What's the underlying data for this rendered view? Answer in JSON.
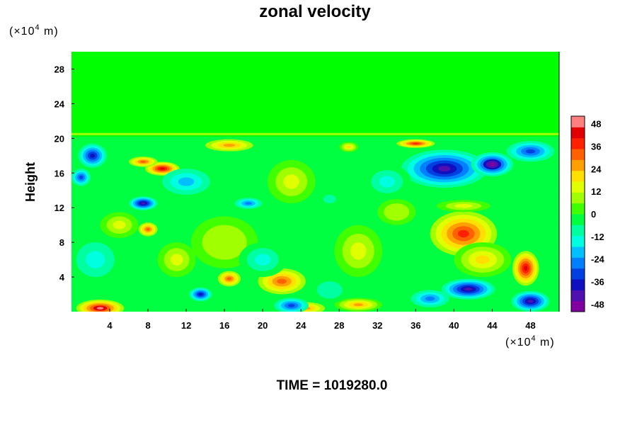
{
  "chart_data": {
    "type": "heatmap",
    "title": "zonal velocity",
    "ylabel": "Height",
    "y_unit": "(×10⁴ m)",
    "x_unit": "(×10⁴ m)",
    "x_unit_prefix": "(×10",
    "x_unit_exp": "4",
    "x_unit_suffix": " m)",
    "y_unit_prefix": "(×10",
    "y_unit_exp": "4",
    "y_unit_suffix": " m)",
    "xlim": [
      0,
      51
    ],
    "ylim": [
      0,
      30
    ],
    "x_ticks": [
      "4",
      "8",
      "12",
      "16",
      "20",
      "24",
      "28",
      "32",
      "36",
      "40",
      "44",
      "48"
    ],
    "y_ticks": [
      "4",
      "8",
      "12",
      "16",
      "20",
      "24",
      "28"
    ],
    "colorbar": {
      "min": -52,
      "max": 52,
      "labels": [
        "48",
        "36",
        "24",
        "12",
        "0",
        "-12",
        "-24",
        "-36",
        "-48"
      ],
      "colors": [
        "#8000a0",
        "#5010b0",
        "#1010c0",
        "#0040e0",
        "#0080ff",
        "#00c0ff",
        "#00ffe0",
        "#00ffa0",
        "#00ff40",
        "#40ff00",
        "#a0ff00",
        "#e0ff00",
        "#ffe000",
        "#ffa000",
        "#ff6000",
        "#ff2000",
        "#e00000",
        "#ff8080"
      ]
    },
    "features": [
      {
        "x": 0,
        "y": 0,
        "sx": 51,
        "sy": 9,
        "v": 0
      },
      {
        "x": 22,
        "y": 3.5,
        "sx": 2.5,
        "sy": 1.5,
        "v": 32
      },
      {
        "x": 16.5,
        "y": 3.8,
        "sx": 1.2,
        "sy": 0.9,
        "v": 30
      },
      {
        "x": 30,
        "y": 0.8,
        "sx": 2.5,
        "sy": 0.8,
        "v": 28
      },
      {
        "x": 24.5,
        "y": 0.4,
        "sx": 2.0,
        "sy": 0.7,
        "v": 26
      },
      {
        "x": 3,
        "y": 0.4,
        "sx": 2.5,
        "sy": 1.0,
        "v": 48
      },
      {
        "x": 13.5,
        "y": 2,
        "sx": 1.2,
        "sy": 0.8,
        "v": -36
      },
      {
        "x": 23,
        "y": 0.7,
        "sx": 1.8,
        "sy": 0.9,
        "v": -30
      },
      {
        "x": 41,
        "y": 9,
        "sx": 3.5,
        "sy": 2.6,
        "v": 40
      },
      {
        "x": 47.5,
        "y": 5,
        "sx": 1.4,
        "sy": 2.0,
        "v": 44
      },
      {
        "x": 43,
        "y": 6,
        "sx": 3.0,
        "sy": 2.0,
        "v": 22
      },
      {
        "x": 41.5,
        "y": 2.6,
        "sx": 2.8,
        "sy": 1.2,
        "v": -46
      },
      {
        "x": 48,
        "y": 1.2,
        "sx": 2.0,
        "sy": 1.2,
        "v": -44
      },
      {
        "x": 37.5,
        "y": 1.5,
        "sx": 2.0,
        "sy": 1.0,
        "v": -24
      },
      {
        "x": 8,
        "y": 9.5,
        "sx": 1.0,
        "sy": 0.8,
        "v": 30
      },
      {
        "x": 2.5,
        "y": 6,
        "sx": 3.0,
        "sy": 3.0,
        "v": -14
      },
      {
        "x": 30,
        "y": 7,
        "sx": 2.5,
        "sy": 3.0,
        "v": 12
      },
      {
        "x": 16,
        "y": 8,
        "sx": 3.5,
        "sy": 3.0,
        "v": 10
      },
      {
        "x": 20,
        "y": 6,
        "sx": 2.5,
        "sy": 2.0,
        "v": -14
      },
      {
        "x": 39,
        "y": 16.5,
        "sx": 4.5,
        "sy": 2.2,
        "v": -44
      },
      {
        "x": 44,
        "y": 17,
        "sx": 2.2,
        "sy": 1.4,
        "v": -50
      },
      {
        "x": 48,
        "y": 18.5,
        "sx": 2.5,
        "sy": 1.2,
        "v": -34
      },
      {
        "x": 36,
        "y": 19.4,
        "sx": 2.0,
        "sy": 0.5,
        "v": 36
      },
      {
        "x": 9.5,
        "y": 16.5,
        "sx": 1.8,
        "sy": 0.8,
        "v": 46
      },
      {
        "x": 7.5,
        "y": 17.3,
        "sx": 1.5,
        "sy": 0.6,
        "v": 30
      },
      {
        "x": 2.2,
        "y": 18,
        "sx": 1.5,
        "sy": 1.4,
        "v": -40
      },
      {
        "x": 1,
        "y": 15.5,
        "sx": 1.0,
        "sy": 1.0,
        "v": -30
      },
      {
        "x": 16.5,
        "y": 19.2,
        "sx": 2.5,
        "sy": 0.7,
        "v": 26
      },
      {
        "x": 29,
        "y": 19.0,
        "sx": 1.0,
        "sy": 0.6,
        "v": 20
      },
      {
        "x": 7.5,
        "y": 12.5,
        "sx": 1.5,
        "sy": 0.8,
        "v": -44
      },
      {
        "x": 18.5,
        "y": 12.5,
        "sx": 1.8,
        "sy": 0.8,
        "v": -28
      },
      {
        "x": 12,
        "y": 15,
        "sx": 2.5,
        "sy": 1.5,
        "v": -18
      },
      {
        "x": 23,
        "y": 15,
        "sx": 2.5,
        "sy": 2.5,
        "v": 14
      },
      {
        "x": 33,
        "y": 15,
        "sx": 2.5,
        "sy": 2.0,
        "v": -12
      },
      {
        "x": 41,
        "y": 12.2,
        "sx": 2.8,
        "sy": 0.7,
        "v": 16
      },
      {
        "x": 27,
        "y": 13,
        "sx": 2.0,
        "sy": 1.5,
        "v": -8
      },
      {
        "x": 5,
        "y": 10,
        "sx": 2.0,
        "sy": 1.5,
        "v": 16
      },
      {
        "x": 11,
        "y": 6,
        "sx": 2.0,
        "sy": 2.0,
        "v": 14
      },
      {
        "x": 27,
        "y": 2.5,
        "sx": 2.0,
        "sy": 1.5,
        "v": -10
      },
      {
        "x": 34,
        "y": 11.5,
        "sx": 2.0,
        "sy": 1.5,
        "v": 10
      }
    ]
  },
  "footer": {
    "time_label": "TIME = 1019280.0"
  }
}
